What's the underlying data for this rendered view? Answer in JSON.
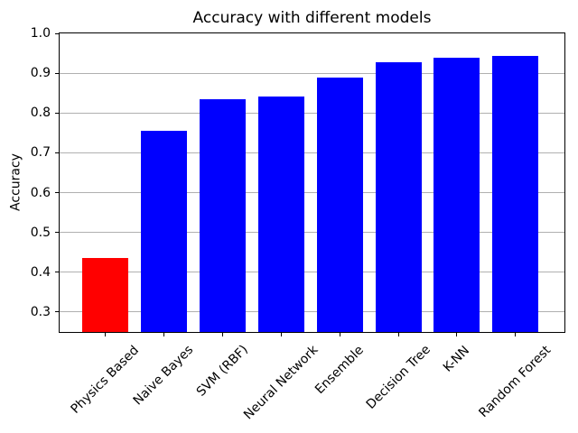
{
  "chart_data": {
    "type": "bar",
    "title": "Accuracy with different models",
    "xlabel": "",
    "ylabel": "Accuracy",
    "categories": [
      "Physics Based",
      "Naive Bayes",
      "SVM (RBF)",
      "Neural Network",
      "Ensemble",
      "Decision Tree",
      "K-NN",
      "Random Forest"
    ],
    "values": [
      0.435,
      0.755,
      0.834,
      0.841,
      0.89,
      0.927,
      0.938,
      0.943
    ],
    "bar_colors": [
      "#ff0000",
      "#0000ff",
      "#0000ff",
      "#0000ff",
      "#0000ff",
      "#0000ff",
      "#0000ff",
      "#0000ff"
    ],
    "ylim": [
      0.25,
      1.0
    ],
    "yticks": [
      0.3,
      0.4,
      0.5,
      0.6,
      0.7,
      0.8,
      0.9,
      1.0
    ],
    "ytick_labels": [
      "0.3",
      "0.4",
      "0.5",
      "0.6",
      "0.7",
      "0.8",
      "0.9",
      "1.0"
    ],
    "xtick_rotation_deg": 45,
    "grid": {
      "axis": "y",
      "color": "#b0b0b0"
    },
    "colors": {
      "highlight_bar": "#ff0000",
      "default_bar": "#0000ff",
      "spine": "#000000",
      "text": "#000000",
      "background": "#ffffff"
    }
  }
}
